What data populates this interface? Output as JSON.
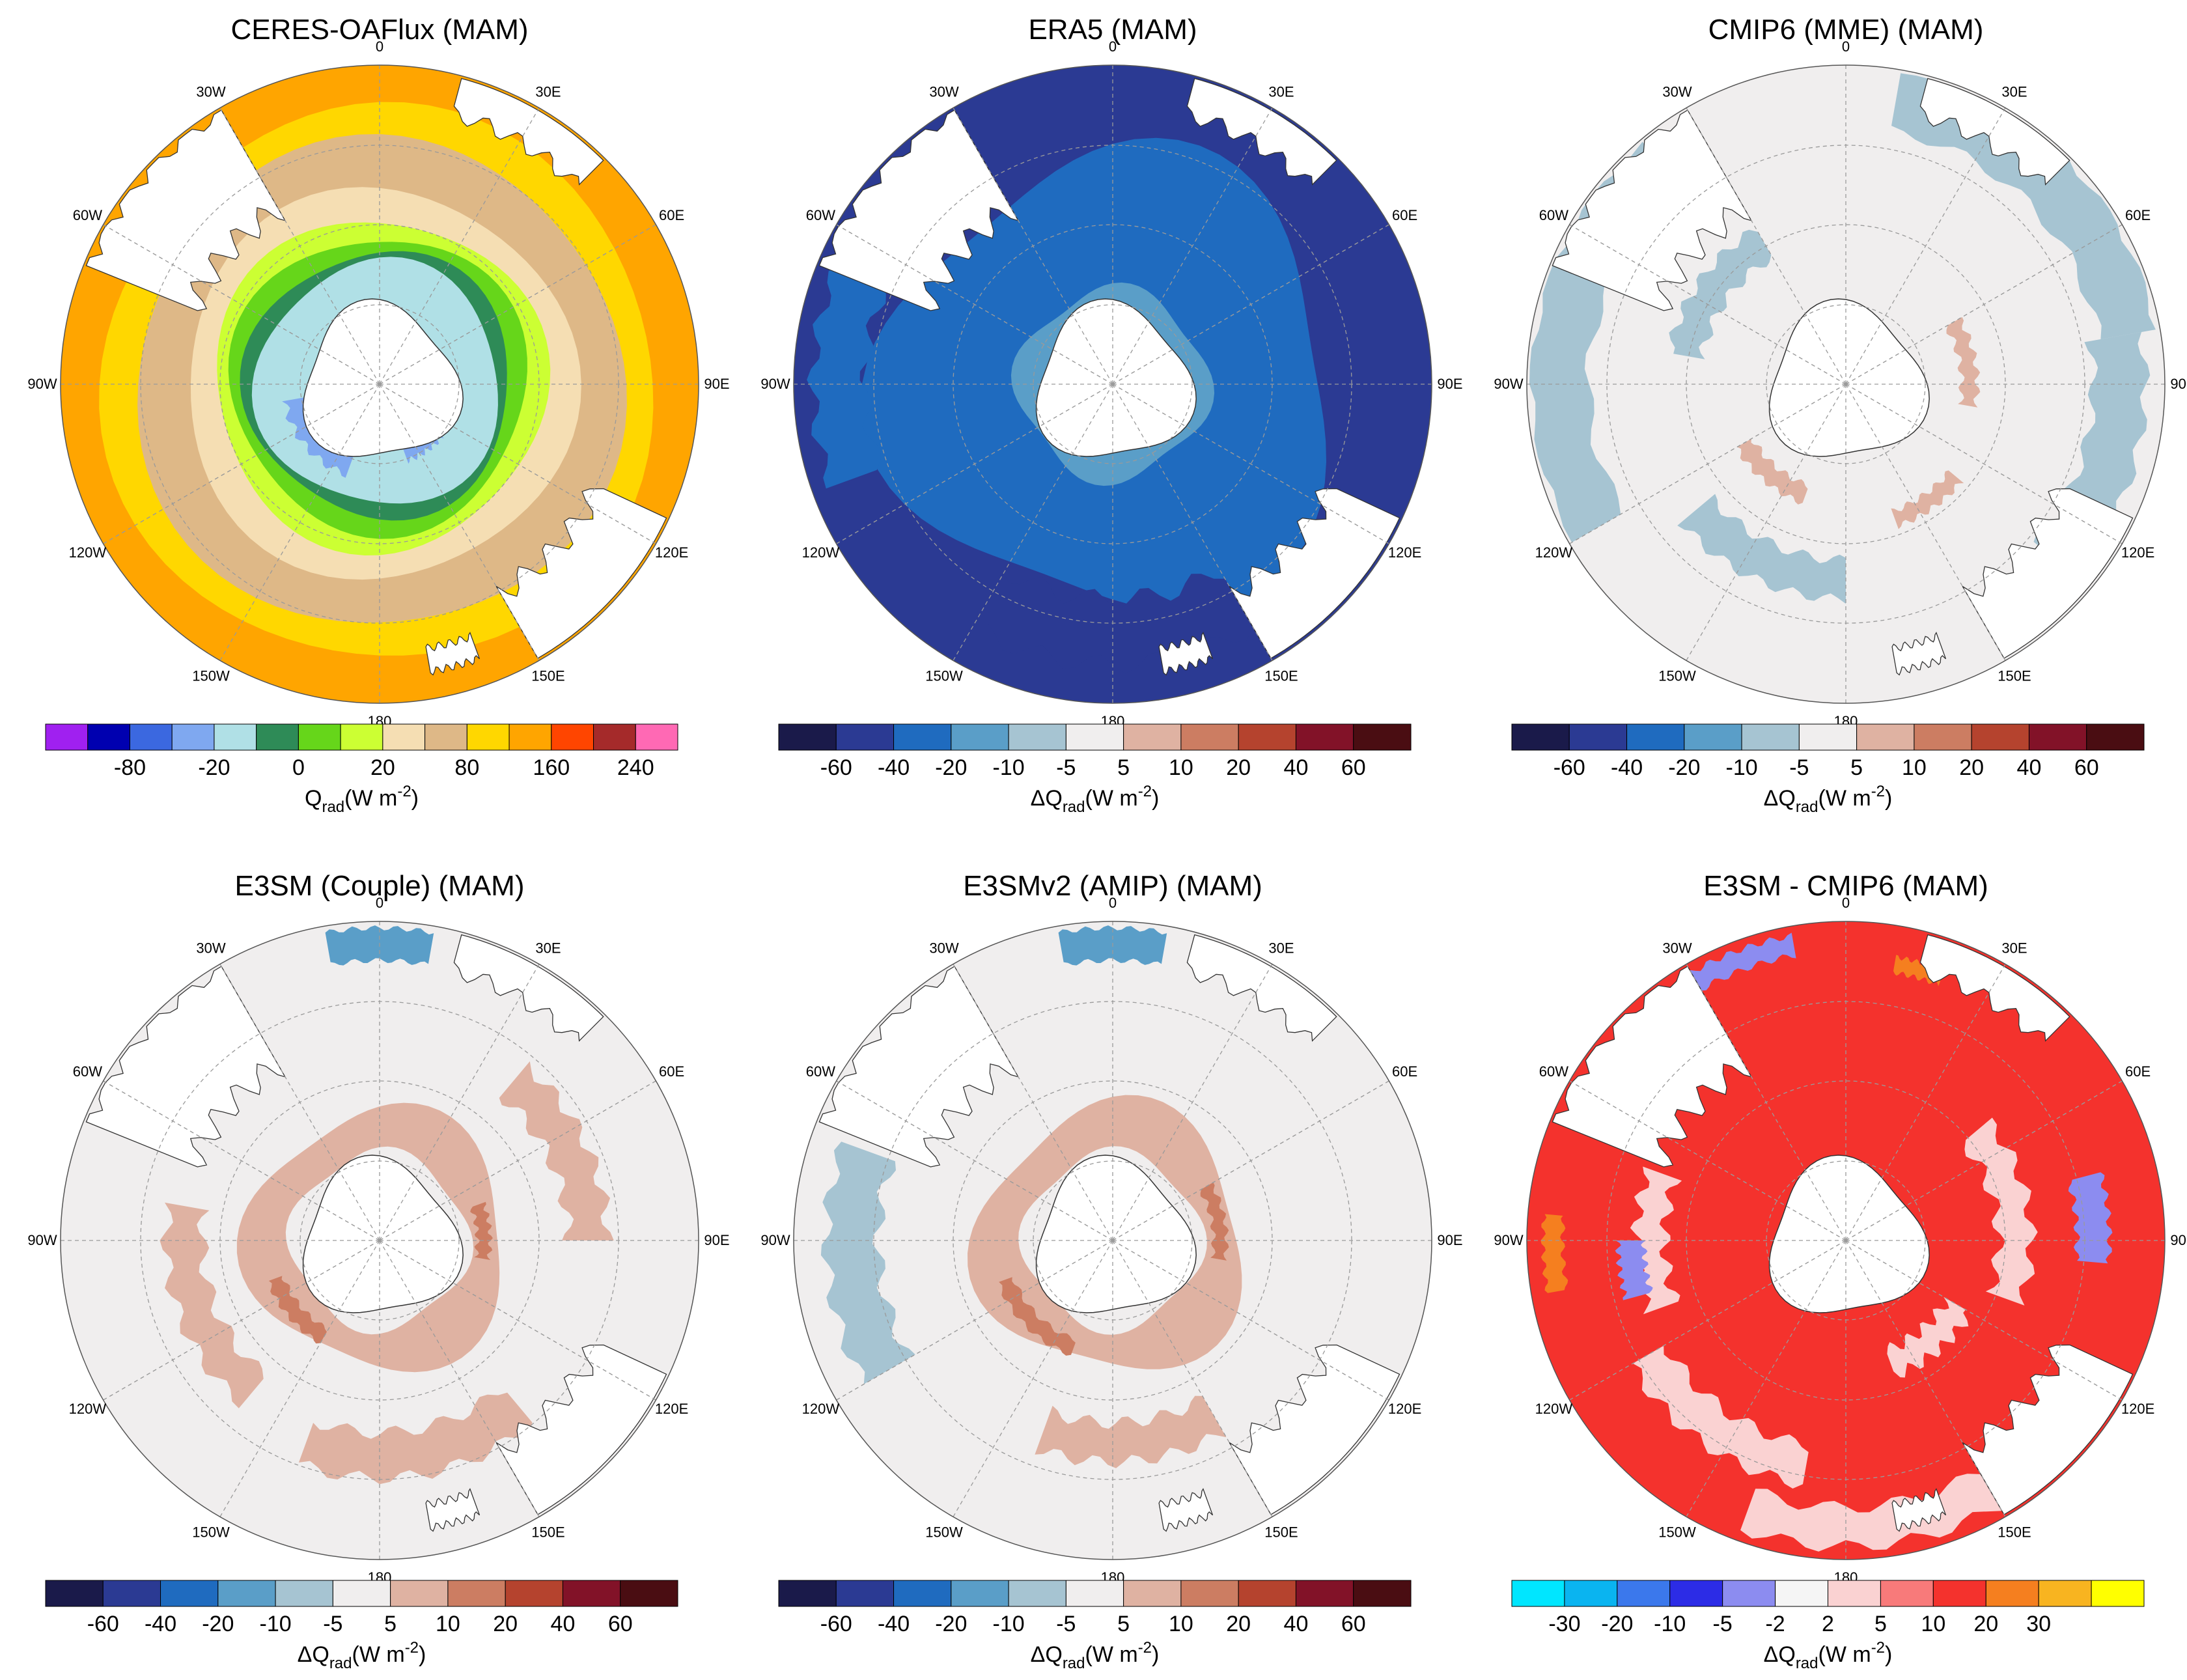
{
  "figure": {
    "panels": [
      {
        "title": "CERES-OAFlux  (MAM)",
        "field": "rings_obs",
        "colorbar": "qrad",
        "units_prefix": "Q",
        "units_sub": "rad",
        "units_suffix": "(W m",
        "units_exp": "-2",
        "units_close": ")"
      },
      {
        "title": "ERA5  (MAM)",
        "field": "era5_bias",
        "colorbar": "diff",
        "units_prefix": "ΔQ",
        "units_sub": "rad",
        "units_suffix": "(W m",
        "units_exp": "-2",
        "units_close": ")"
      },
      {
        "title": "CMIP6 (MME)  (MAM)",
        "field": "cmip6_bias",
        "colorbar": "diff",
        "units_prefix": "ΔQ",
        "units_sub": "rad",
        "units_suffix": "(W m",
        "units_exp": "-2",
        "units_close": ")"
      },
      {
        "title": "E3SM (Couple)  (MAM)",
        "field": "e3sm_couple_bias",
        "colorbar": "diff",
        "units_prefix": "ΔQ",
        "units_sub": "rad",
        "units_suffix": "(W m",
        "units_exp": "-2",
        "units_close": ")"
      },
      {
        "title": "E3SMv2 (AMIP)  (MAM)",
        "field": "e3sm_amip_bias",
        "colorbar": "diff",
        "units_prefix": "ΔQ",
        "units_sub": "rad",
        "units_suffix": "(W m",
        "units_exp": "-2",
        "units_close": ")"
      },
      {
        "title": "E3SM - CMIP6  (MAM)",
        "field": "e3sm_minus_cmip6",
        "colorbar": "diff2",
        "units_prefix": "ΔQ",
        "units_sub": "rad",
        "units_suffix": "(W m",
        "units_exp": "-2",
        "units_close": ")"
      }
    ],
    "longitude_labels": [
      "0",
      "30E",
      "60E",
      "90E",
      "120E",
      "150E",
      "180",
      "150W",
      "120W",
      "90W",
      "60W",
      "30W"
    ],
    "colorbars": {
      "qrad": {
        "colors": [
          "#a020f0",
          "#0000b0",
          "#3b68e0",
          "#7fa8f0",
          "#b0e0e6",
          "#2e8b57",
          "#66d61a",
          "#ccff33",
          "#f5deb3",
          "#deb887",
          "#ffd700",
          "#ffa500",
          "#ff4500",
          "#a52a2a",
          "#ff69b4"
        ],
        "tick_labels": [
          "-80",
          "-20",
          "0",
          "20",
          "80",
          "160",
          "240"
        ]
      },
      "diff": {
        "colors": [
          "#1a1a4a",
          "#2b3a93",
          "#1f6bbf",
          "#5a9ec8",
          "#a6c4d2",
          "#f0eeee",
          "#dfb2a2",
          "#cc7d62",
          "#b5432e",
          "#821228",
          "#4a0d12"
        ],
        "tick_labels": [
          "-60",
          "-40",
          "-20",
          "-10",
          "-5",
          "5",
          "10",
          "20",
          "40",
          "60"
        ]
      },
      "diff2": {
        "colors": [
          "#00e6ff",
          "#0ab4f0",
          "#3b78ec",
          "#2c2ce6",
          "#8c8cf0",
          "#f5f5f5",
          "#fad2d2",
          "#f87a7a",
          "#f4322d",
          "#f57f1f",
          "#f8b420",
          "#ffff00"
        ],
        "tick_labels": [
          "-30",
          "-20",
          "-10",
          "-5",
          "-2",
          "2",
          "5",
          "10",
          "20",
          "30"
        ]
      }
    },
    "colors": {
      "land": "#ffffff",
      "coast": "#333333",
      "grid": "#9a9a9a"
    }
  }
}
